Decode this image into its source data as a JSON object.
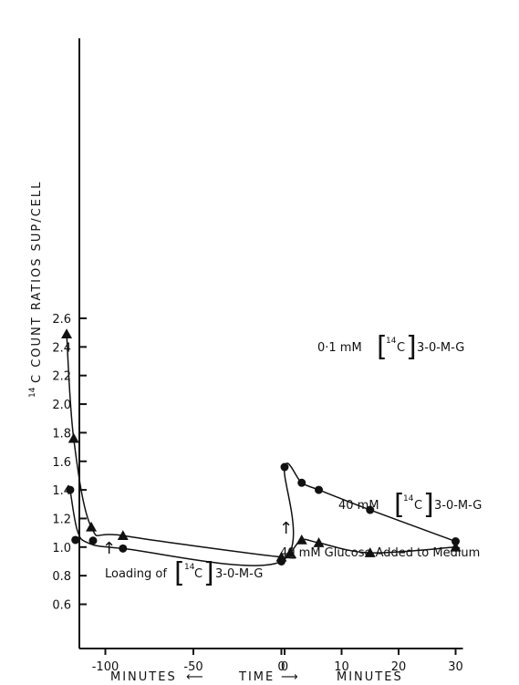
{
  "chart_data": {
    "type": "line",
    "title": "",
    "xlabel": {
      "left": "MINUTES",
      "mid": "TIME",
      "right": "MINUTES"
    },
    "ylabel": {
      "sup": "14",
      "main": "C COUNT RATIOS  SUP/CELL"
    },
    "ylim": [
      0.6,
      2.6
    ],
    "y_ticks": [
      "0.6",
      "0.8",
      "1.0",
      "1.2",
      "1.4",
      "1.6",
      "1.8",
      "2.0",
      "2.2",
      "2.4",
      "2.6"
    ],
    "x_ticks_left": [
      "-100",
      "-50",
      "0"
    ],
    "x_ticks_right": [
      "0",
      "10",
      "20",
      "30"
    ],
    "grid": false,
    "series": [
      {
        "marker": "circle",
        "label_parts": {
          "prefix": "0·1 mM",
          "sup": "14",
          "iso": "C",
          "suffix": "3-0-M-G"
        },
        "points": [
          {
            "seg": "left",
            "x": -120,
            "y": 1.4
          },
          {
            "seg": "left",
            "x": -117,
            "y": 1.05
          },
          {
            "seg": "left",
            "x": -107,
            "y": 1.045
          },
          {
            "seg": "left",
            "x": -90,
            "y": 0.99
          },
          {
            "seg": "left",
            "x": 0,
            "y": 0.9
          },
          {
            "seg": "right",
            "x": 0,
            "y": 1.56
          },
          {
            "seg": "right",
            "x": 3,
            "y": 1.45
          },
          {
            "seg": "right",
            "x": 6,
            "y": 1.4
          },
          {
            "seg": "right",
            "x": 15,
            "y": 1.26
          },
          {
            "seg": "right",
            "x": 30,
            "y": 1.04
          }
        ],
        "curve_through": [
          {
            "seg": "left",
            "x": -120,
            "y": 1.4
          },
          {
            "seg": "left",
            "x": -116,
            "y": 1.12
          },
          {
            "seg": "left",
            "x": -110,
            "y": 1.03
          },
          {
            "seg": "left",
            "x": -90,
            "y": 0.99
          },
          {
            "seg": "left",
            "x": 0,
            "y": 0.9
          },
          {
            "seg": "right",
            "x": 0,
            "y": 1.56
          },
          {
            "seg": "right",
            "x": 3,
            "y": 1.45
          },
          {
            "seg": "right",
            "x": 6,
            "y": 1.4
          },
          {
            "seg": "right",
            "x": 15,
            "y": 1.26
          },
          {
            "seg": "right",
            "x": 30,
            "y": 1.04
          }
        ]
      },
      {
        "marker": "triangle",
        "label_parts": {
          "prefix": "40 mM",
          "sup": "14",
          "iso": "C",
          "suffix": "3-0-M-G"
        },
        "points": [
          {
            "seg": "left",
            "x": -122,
            "y": 2.49
          },
          {
            "seg": "left",
            "x": -118,
            "y": 1.76
          },
          {
            "seg": "left",
            "x": -108,
            "y": 1.14
          },
          {
            "seg": "left",
            "x": -90,
            "y": 1.08
          },
          {
            "seg": "left",
            "x": 0,
            "y": 0.93
          },
          {
            "seg": "right",
            "x": 1,
            "y": 0.96
          },
          {
            "seg": "right",
            "x": 3,
            "y": 1.05
          },
          {
            "seg": "right",
            "x": 6,
            "y": 1.03
          },
          {
            "seg": "right",
            "x": 15,
            "y": 0.96
          },
          {
            "seg": "right",
            "x": 30,
            "y": 1.0
          }
        ]
      }
    ],
    "annotations": {
      "loading": {
        "prefix": "Loading of",
        "sup": "14",
        "iso": "C",
        "suffix": "3-0-M-G"
      },
      "glucose": "40 mM Glucose Added to Medium",
      "arrow_up": "↑",
      "bracket_open": "[",
      "bracket_close": "]",
      "arrow_left": "⟵",
      "arrow_right": "⟶"
    }
  }
}
